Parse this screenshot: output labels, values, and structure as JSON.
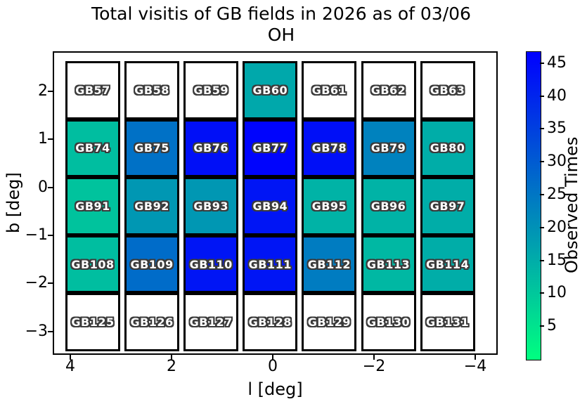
{
  "title": {
    "line1": "Total visitis of GB fields in 2026 as of 03/06",
    "line2": "OH"
  },
  "axes": {
    "xlabel": "l [deg]",
    "ylabel": "b [deg]",
    "x_tick_labels": [
      "4",
      "2",
      "0",
      "−2",
      "−4"
    ],
    "y_tick_labels": [
      "2",
      "1",
      "0",
      "−1",
      "−2",
      "−3"
    ]
  },
  "colors": {
    "cmap_low": "#00ff80",
    "cmap_high": "#0000ff",
    "zero_cell": "#ffffff",
    "cell_border": "#000000",
    "label_fill": "#ffffff",
    "label_outline": "#3b3b3b"
  },
  "chart_data": {
    "type": "heatmap",
    "title": "Total visitis of GB fields in 2026 as of 03/06 OH",
    "xlabel": "l [deg]",
    "ylabel": "b [deg]",
    "x_axis_inverted": true,
    "x_ticks": [
      4,
      2,
      0,
      -2,
      -4
    ],
    "y_ticks": [
      2,
      1,
      0,
      -1,
      -2,
      -3
    ],
    "colormap": "winter_r",
    "colorbar": {
      "label": "Observed Times",
      "tick_values": [
        45,
        40,
        35,
        30,
        25,
        20,
        15,
        10,
        5
      ],
      "vmin": 0,
      "vmax": 46.8
    },
    "rows": [
      {
        "cells": [
          {
            "field": "GB57",
            "visits": 0
          },
          {
            "field": "GB58",
            "visits": 0
          },
          {
            "field": "GB59",
            "visits": 0
          },
          {
            "field": "GB60",
            "visits": 16
          },
          {
            "field": "GB61",
            "visits": 0
          },
          {
            "field": "GB62",
            "visits": 0
          },
          {
            "field": "GB63",
            "visits": 0
          }
        ]
      },
      {
        "cells": [
          {
            "field": "GB74",
            "visits": 12
          },
          {
            "field": "GB75",
            "visits": 26
          },
          {
            "field": "GB76",
            "visits": 44
          },
          {
            "field": "GB77",
            "visits": 46
          },
          {
            "field": "GB78",
            "visits": 44
          },
          {
            "field": "GB79",
            "visits": 23
          },
          {
            "field": "GB80",
            "visits": 15
          }
        ]
      },
      {
        "cells": [
          {
            "field": "GB91",
            "visits": 11
          },
          {
            "field": "GB92",
            "visits": 19
          },
          {
            "field": "GB93",
            "visits": 19
          },
          {
            "field": "GB94",
            "visits": 43
          },
          {
            "field": "GB95",
            "visits": 14
          },
          {
            "field": "GB96",
            "visits": 14
          },
          {
            "field": "GB97",
            "visits": 15
          }
        ]
      },
      {
        "cells": [
          {
            "field": "GB108",
            "visits": 12
          },
          {
            "field": "GB109",
            "visits": 27
          },
          {
            "field": "GB110",
            "visits": 43
          },
          {
            "field": "GB111",
            "visits": 43
          },
          {
            "field": "GB112",
            "visits": 24
          },
          {
            "field": "GB113",
            "visits": 13
          },
          {
            "field": "GB114",
            "visits": 15
          }
        ]
      },
      {
        "cells": [
          {
            "field": "GB125",
            "visits": 0
          },
          {
            "field": "GB126",
            "visits": 0
          },
          {
            "field": "GB127",
            "visits": 0
          },
          {
            "field": "GB128",
            "visits": 0
          },
          {
            "field": "GB129",
            "visits": 0
          },
          {
            "field": "GB130",
            "visits": 0
          },
          {
            "field": "GB131",
            "visits": 0
          }
        ]
      }
    ]
  }
}
